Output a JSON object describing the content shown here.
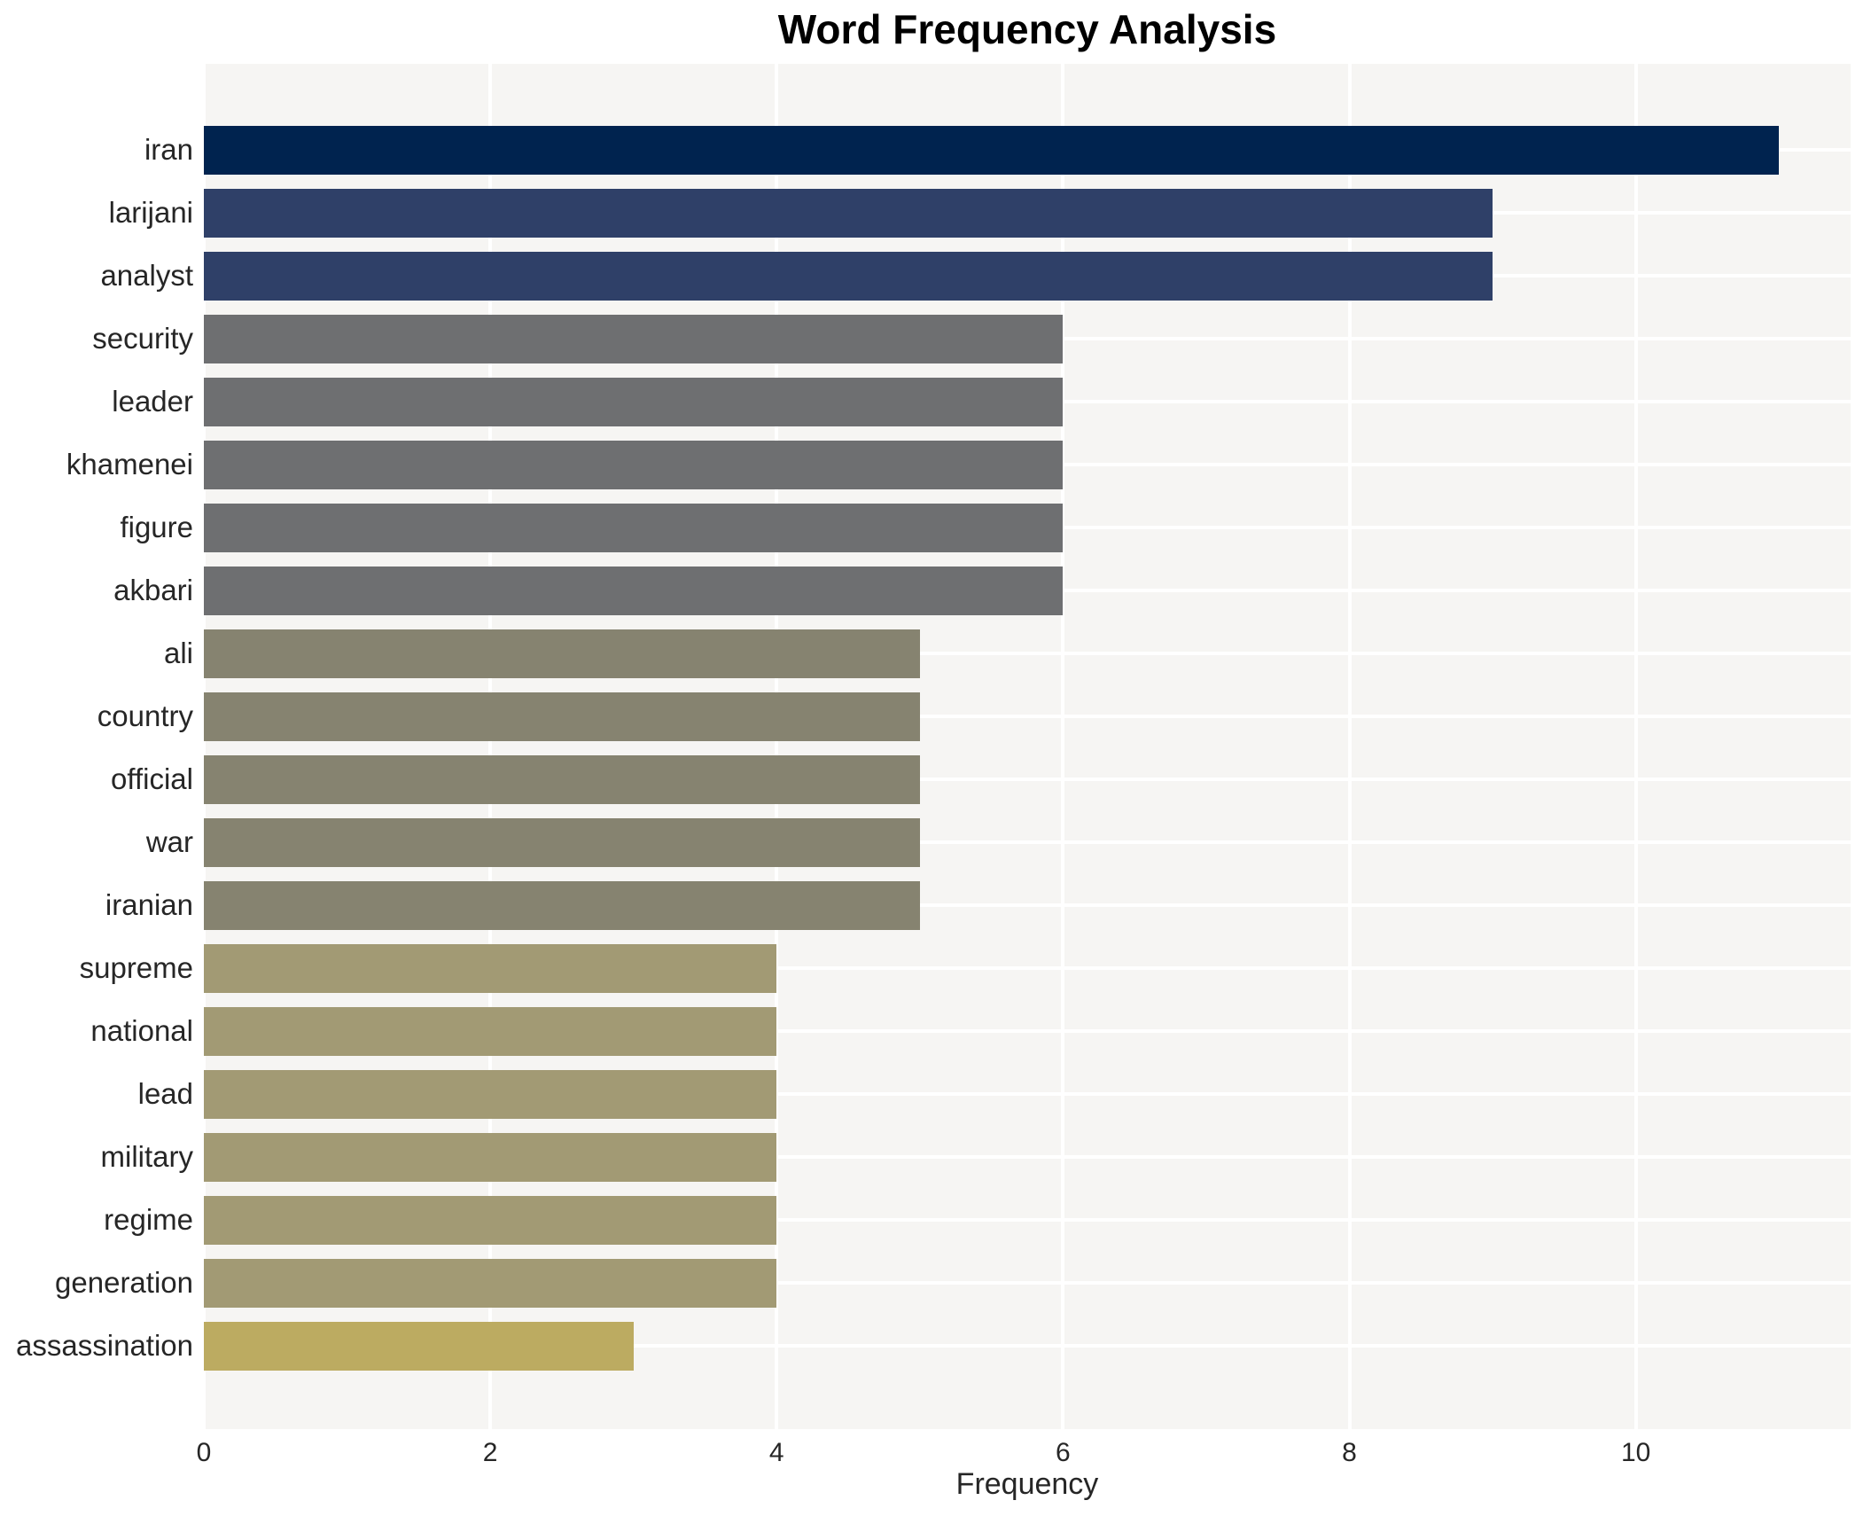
{
  "chart_data": {
    "type": "bar",
    "orientation": "horizontal",
    "title": "Word Frequency Analysis",
    "xlabel": "Frequency",
    "ylabel": "",
    "categories": [
      "iran",
      "larijani",
      "analyst",
      "security",
      "leader",
      "khamenei",
      "figure",
      "akbari",
      "ali",
      "country",
      "official",
      "war",
      "iranian",
      "supreme",
      "national",
      "lead",
      "military",
      "regime",
      "generation",
      "assassination"
    ],
    "values": [
      11,
      9,
      9,
      6,
      6,
      6,
      6,
      6,
      5,
      5,
      5,
      5,
      5,
      4,
      4,
      4,
      4,
      4,
      4,
      3
    ],
    "bar_colors": [
      "#00234f",
      "#2f4068",
      "#2f4068",
      "#6e6f71",
      "#6e6f71",
      "#6e6f71",
      "#6e6f71",
      "#6e6f71",
      "#868370",
      "#868370",
      "#868370",
      "#868370",
      "#868370",
      "#a29a74",
      "#a29a74",
      "#a29a74",
      "#a29a74",
      "#a29a74",
      "#a29a74",
      "#bcab61"
    ],
    "xlim": [
      0,
      11.5
    ],
    "xticks": [
      "0",
      "2",
      "4",
      "6",
      "8",
      "10"
    ],
    "xtick_values": [
      0,
      2,
      4,
      6,
      8,
      10
    ],
    "grid": true,
    "legend_position": "none",
    "plot_background": "#f6f5f3",
    "grid_color": "#ffffff",
    "text_color": "#262626",
    "title_color": "#000000"
  }
}
